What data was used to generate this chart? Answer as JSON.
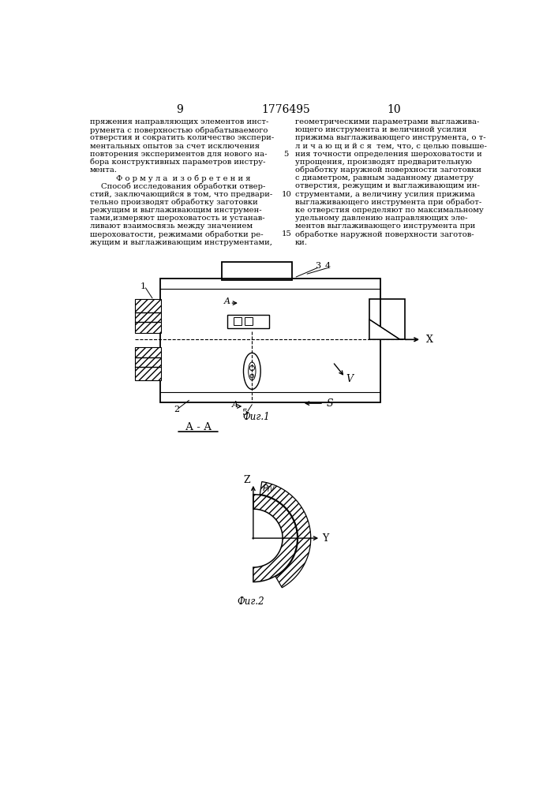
{
  "page_width": 7.07,
  "page_height": 10.0,
  "bg_color": "#ffffff",
  "header": {
    "left_num": "9",
    "center_num": "1776495",
    "right_num": "10",
    "font_size": 10
  },
  "left_col_text": [
    "пряжения направляющих элементов инст-",
    "румента с поверхностью обрабатываемого",
    "отверстия и сократить количество экспери-",
    "ментальных опытов за счет исключения",
    "повторения экспериментов для нового на-",
    "бора конструктивных параметров инстру-",
    "мента.",
    "Ф о р м у л а  и з о б р е т е н и я",
    "Способ исследования обработки отвер-",
    "стий, заключающийся в том, что предвари-",
    "тельно производят обработку заготовки",
    "режущим и выглаживающим инструмен-",
    "тами,измеряют шероховатость и устанав-",
    "ливают взаимосвязь между значением",
    "шероховатости, режимами обработки ре-",
    "жущим и выглаживающим инструментами,"
  ],
  "right_col_text": [
    "геометрическими параметрами выглажива-",
    "ющего инструмента и величиной усилия",
    "прижима выглаживающего инструмента, о т-",
    "л и ч а ю щ и й с я  тем, что, с целью повыше-",
    "ния точности определения шероховатости и",
    "упрощения, производят предварительную",
    "обработку наружной поверхности заготовки",
    "с диаметром, равным заданному диаметру",
    "отверстия, режущим и выглаживающим ин-",
    "струментами, а величину усилия прижима",
    "выглаживающего инструмента при обработ-",
    "ке отверстия определяют по максимальному",
    "удельному давлению направляющих эле-",
    "ментов выглаживающего инструмента при",
    "обработке наружной поверхности заготов-",
    "ки."
  ],
  "fig1_caption": "Фиг.1",
  "fig2_caption": "Фиг.2",
  "aa_label": "А - А"
}
